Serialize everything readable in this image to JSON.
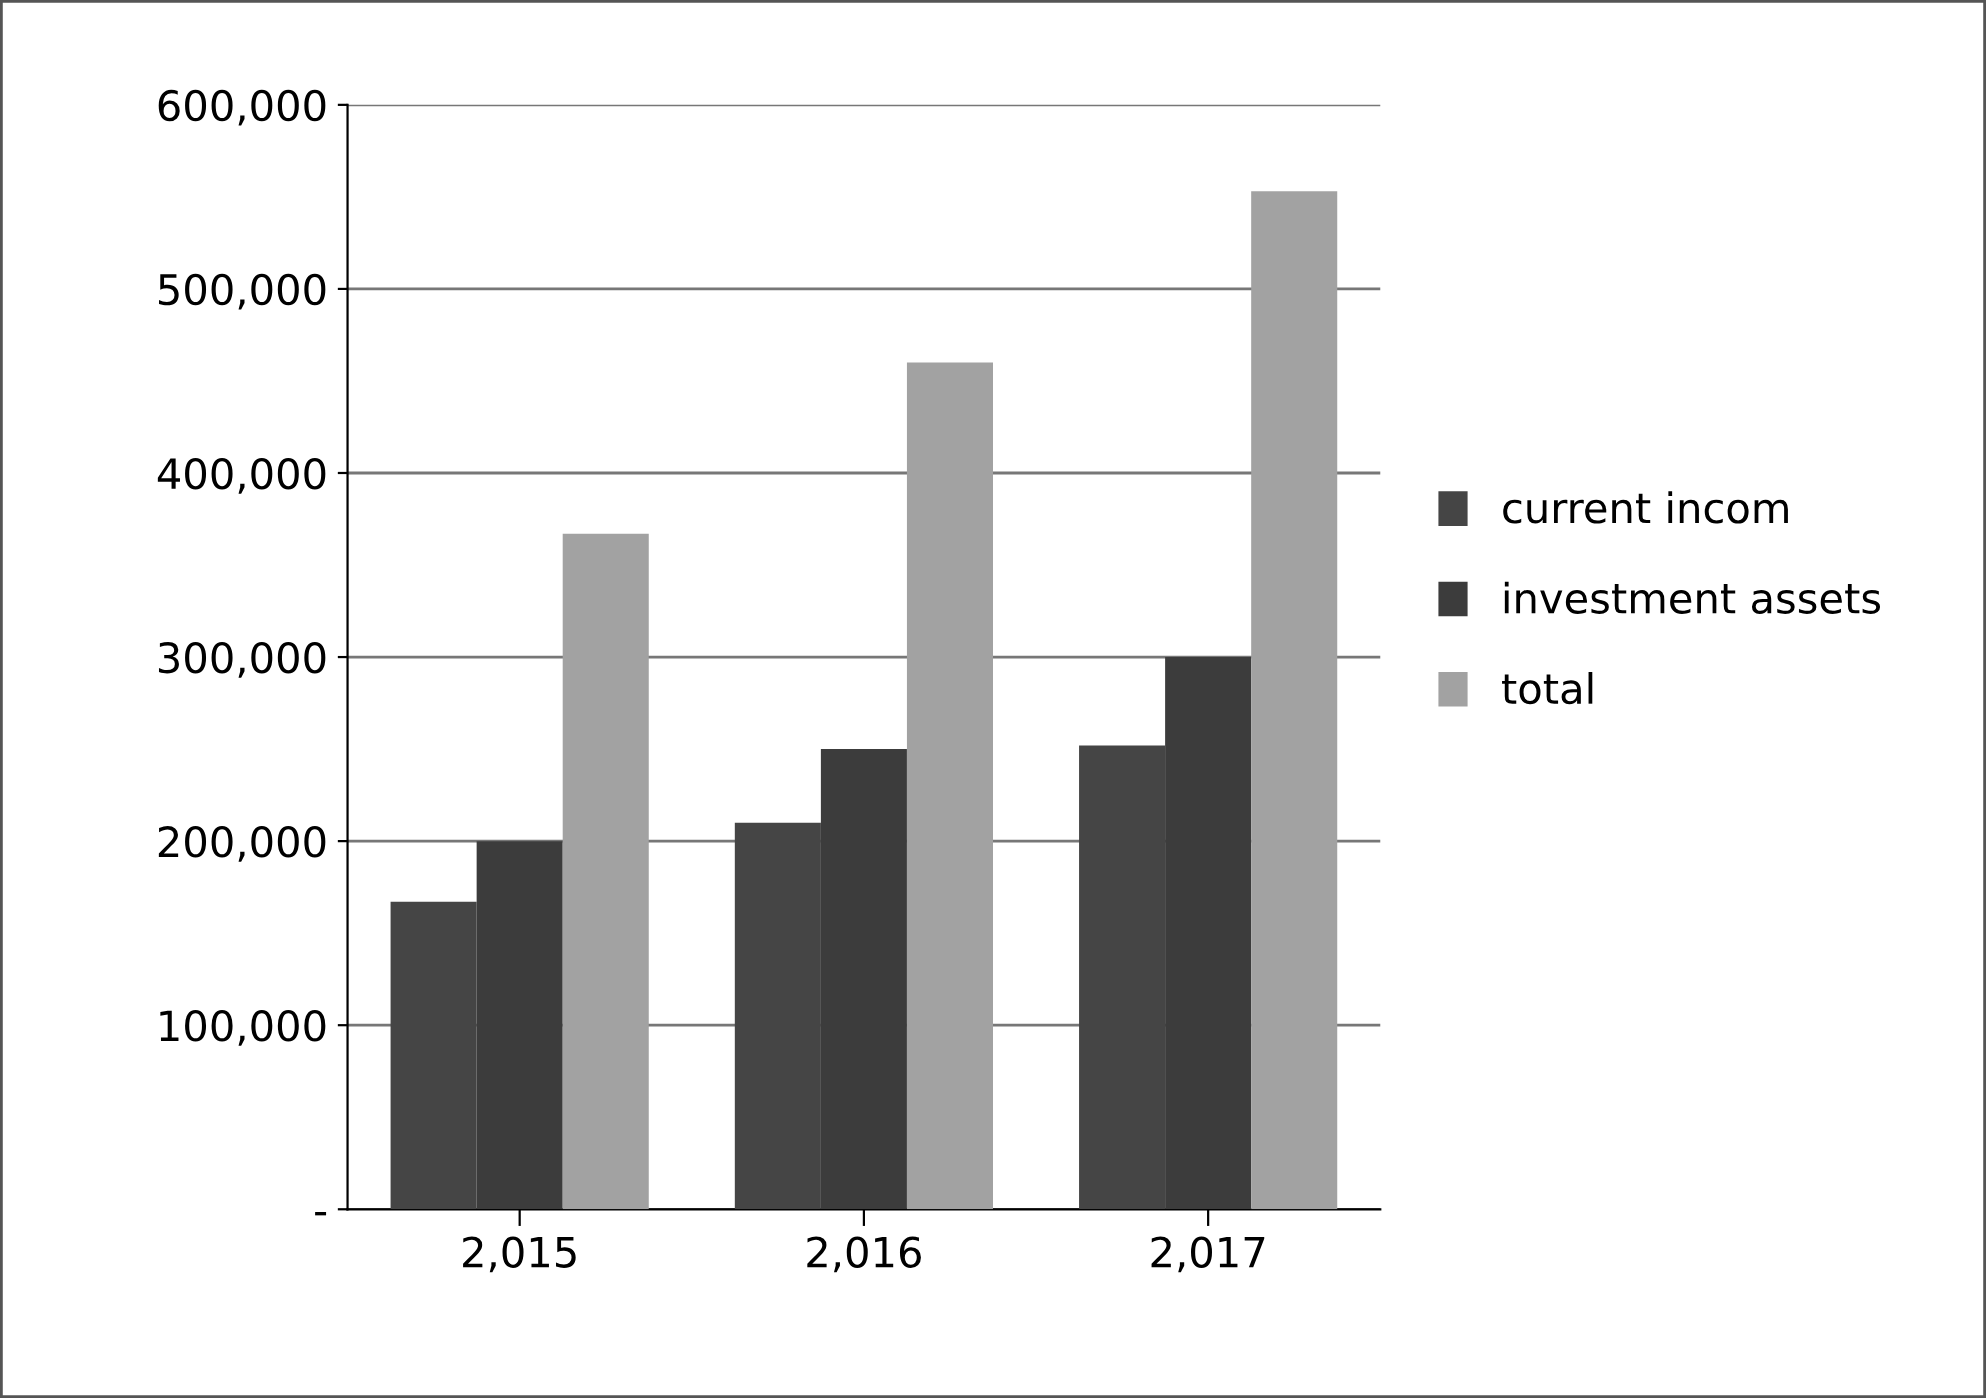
{
  "chart_data": {
    "type": "bar",
    "categories": [
      "2,015",
      "2,016",
      "2,017"
    ],
    "series": [
      {
        "name": "current incom",
        "color": "#454545",
        "values": [
          167000,
          210000,
          252000
        ]
      },
      {
        "name": "investment assets",
        "color": "#3c3c3c",
        "values": [
          200000,
          250000,
          300000
        ]
      },
      {
        "name": "total",
        "color": "#a2a2a2",
        "values": [
          367000,
          460000,
          553000
        ]
      }
    ],
    "ylim": [
      0,
      600000
    ],
    "yticks": [
      {
        "value": 0,
        "label": "-"
      },
      {
        "value": 100000,
        "label": "100,000"
      },
      {
        "value": 200000,
        "label": "200,000"
      },
      {
        "value": 300000,
        "label": "300,000"
      },
      {
        "value": 400000,
        "label": "400,000"
      },
      {
        "value": 500000,
        "label": "500,000"
      },
      {
        "value": 600000,
        "label": "600,000"
      }
    ],
    "grid": "y",
    "legend": "right"
  }
}
